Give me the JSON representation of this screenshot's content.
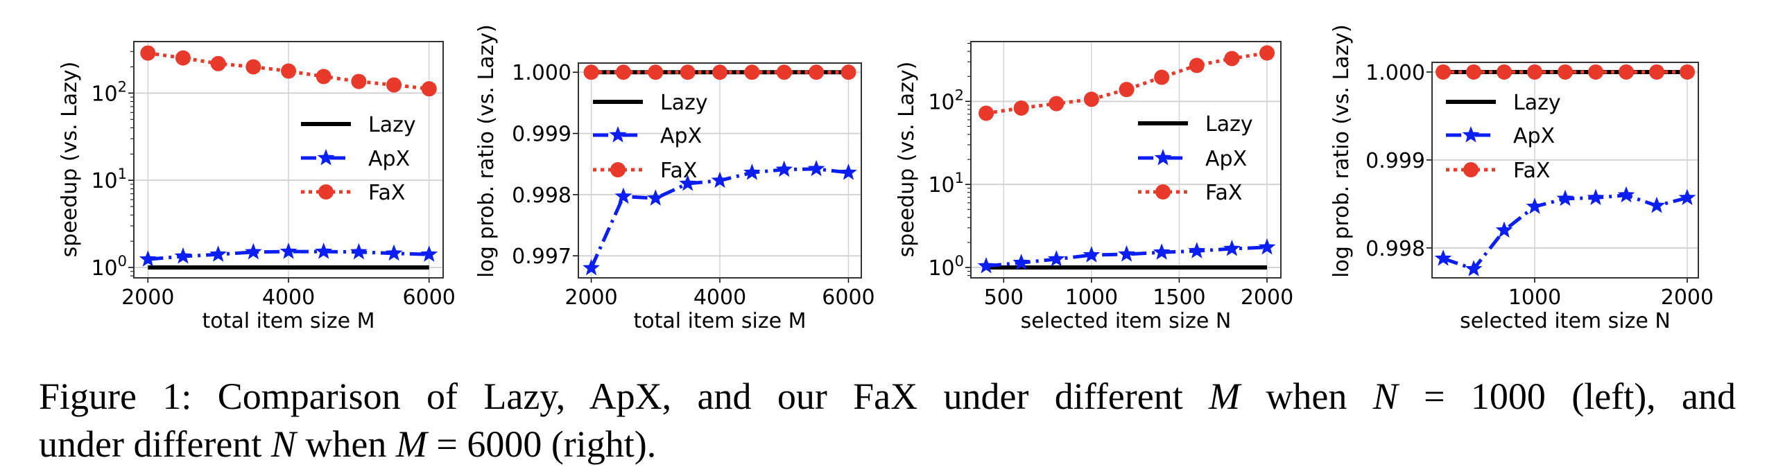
{
  "colors": {
    "Lazy": "#000000",
    "ApX": "#0a1ef5",
    "FaX": "#e8392a",
    "grid": "#d3d3d3"
  },
  "chart_data": [
    {
      "type": "line",
      "xlabel": "total item size M",
      "ylabel": "speedup (vs. Lazy)",
      "yscale": "log",
      "xlim": [
        1800,
        6200
      ],
      "ylim": [
        0.76,
        390
      ],
      "xticks": [
        2000,
        4000,
        6000
      ],
      "yticks": [
        {
          "value": 1,
          "base": "10",
          "exp": "0"
        },
        {
          "value": 10,
          "base": "10",
          "exp": "1"
        },
        {
          "value": 100,
          "base": "10",
          "exp": "2"
        }
      ],
      "grid": true,
      "legend": "center-right",
      "x": [
        2000,
        2500,
        3000,
        3500,
        4000,
        4500,
        5000,
        5500,
        6000
      ],
      "series": [
        {
          "name": "Lazy",
          "values": [
            1,
            1,
            1,
            1,
            1,
            1,
            1,
            1,
            1
          ],
          "style": "solid",
          "marker": "none"
        },
        {
          "name": "ApX",
          "values": [
            1.24,
            1.34,
            1.41,
            1.5,
            1.52,
            1.52,
            1.5,
            1.45,
            1.41
          ],
          "style": "dashdot",
          "marker": "star"
        },
        {
          "name": "FaX",
          "values": [
            288,
            253,
            218,
            200,
            179,
            155,
            136,
            124,
            112
          ],
          "style": "dotted",
          "marker": "circle"
        }
      ]
    },
    {
      "type": "line",
      "xlabel": "total item size M",
      "ylabel": "log prob. ratio (vs. Lazy)",
      "yscale": "linear",
      "xlim": [
        1800,
        6200
      ],
      "ylim": [
        0.99664,
        1.00015
      ],
      "xticks": [
        2000,
        4000,
        6000
      ],
      "yticks": [
        {
          "value": 0.997,
          "label": "0.997"
        },
        {
          "value": 0.998,
          "label": "0.998"
        },
        {
          "value": 0.999,
          "label": "0.999"
        },
        {
          "value": 1.0,
          "label": "1.000"
        }
      ],
      "grid": true,
      "legend": "upper-left",
      "x": [
        2000,
        2500,
        3000,
        3500,
        4000,
        4500,
        5000,
        5500,
        6000
      ],
      "series": [
        {
          "name": "Lazy",
          "values": [
            1,
            1,
            1,
            1,
            1,
            1,
            1,
            1,
            1
          ],
          "style": "solid",
          "marker": "none"
        },
        {
          "name": "ApX",
          "values": [
            0.9968,
            0.99797,
            0.99794,
            0.99818,
            0.99823,
            0.99836,
            0.99841,
            0.99842,
            0.99836
          ],
          "style": "dashdot",
          "marker": "star"
        },
        {
          "name": "FaX",
          "values": [
            1,
            1,
            1,
            1,
            1,
            1,
            1,
            1,
            1
          ],
          "style": "dotted",
          "marker": "circle"
        }
      ]
    },
    {
      "type": "line",
      "xlabel": "selected item size N",
      "ylabel": "speedup (vs. Lazy)",
      "yscale": "log",
      "xlim": [
        313,
        2079
      ],
      "ylim": [
        0.75,
        525
      ],
      "xticks": [
        500,
        1000,
        1500,
        2000
      ],
      "yticks": [
        {
          "value": 1,
          "base": "10",
          "exp": "0"
        },
        {
          "value": 10,
          "base": "10",
          "exp": "1"
        },
        {
          "value": 100,
          "base": "10",
          "exp": "2"
        }
      ],
      "grid": true,
      "legend": "center-right",
      "x": [
        400,
        600,
        800,
        1000,
        1200,
        1400,
        1600,
        1800,
        2000
      ],
      "series": [
        {
          "name": "Lazy",
          "values": [
            1,
            1,
            1,
            1,
            1,
            1,
            1,
            1,
            1
          ],
          "style": "solid",
          "marker": "none"
        },
        {
          "name": "ApX",
          "values": [
            1.04,
            1.14,
            1.26,
            1.41,
            1.44,
            1.52,
            1.58,
            1.68,
            1.75
          ],
          "style": "dashdot",
          "marker": "star"
        },
        {
          "name": "FaX",
          "values": [
            72,
            83,
            94,
            106,
            139,
            195,
            271,
            328,
            383
          ],
          "style": "dotted",
          "marker": "circle"
        }
      ]
    },
    {
      "type": "line",
      "xlabel": "selected item size N",
      "ylabel": "log prob. ratio (vs. Lazy)",
      "yscale": "linear",
      "xlim": [
        327,
        2073
      ],
      "ylim": [
        0.99766,
        1.00011
      ],
      "xticks": [
        1000,
        2000
      ],
      "yticks": [
        {
          "value": 0.998,
          "label": "0.998"
        },
        {
          "value": 0.999,
          "label": "0.999"
        },
        {
          "value": 1.0,
          "label": "1.000"
        }
      ],
      "grid": true,
      "legend": "upper-left",
      "x": [
        400,
        600,
        800,
        1000,
        1200,
        1400,
        1600,
        1800,
        2000
      ],
      "series": [
        {
          "name": "Lazy",
          "values": [
            1,
            1,
            1,
            1,
            1,
            1,
            1,
            1,
            1
          ],
          "style": "solid",
          "marker": "none"
        },
        {
          "name": "ApX",
          "values": [
            0.99788,
            0.99776,
            0.9982,
            0.99847,
            0.99856,
            0.99857,
            0.9986,
            0.99848,
            0.99857
          ],
          "style": "dashdot",
          "marker": "star"
        },
        {
          "name": "FaX",
          "values": [
            1,
            1,
            1,
            1,
            1,
            1,
            1,
            1,
            1
          ],
          "style": "dotted",
          "marker": "circle"
        }
      ]
    }
  ],
  "caption": {
    "line1": [
      {
        "text": "Figure 1: Comparison of Lazy, ApX, and our FaX under different ",
        "italic": false
      },
      {
        "text": "M",
        "italic": true
      },
      {
        "text": " when ",
        "italic": false
      },
      {
        "text": "N",
        "italic": true
      },
      {
        "text": " = 1000 (left), and",
        "italic": false
      }
    ],
    "line2": [
      {
        "text": "under different ",
        "italic": false
      },
      {
        "text": "N",
        "italic": true
      },
      {
        "text": " when ",
        "italic": false
      },
      {
        "text": "M",
        "italic": true
      },
      {
        "text": " = 6000 (right).",
        "italic": false
      }
    ]
  }
}
